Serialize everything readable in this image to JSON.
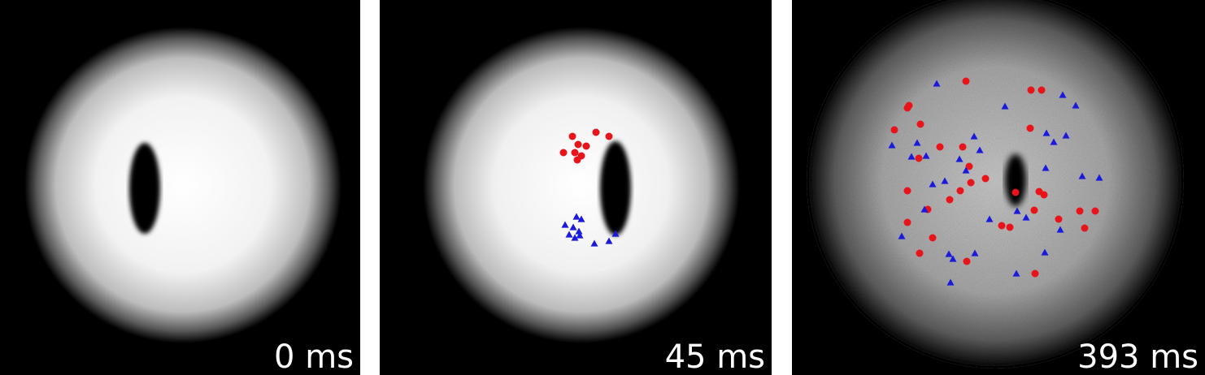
{
  "panels": [
    {
      "time_label": "0 ms"
    },
    {
      "time_label": "45 ms"
    },
    {
      "time_label": "393 ms"
    }
  ],
  "legend_markers": {
    "red": "#e8141a",
    "blue": "#1a1adc",
    "red_shape": "circle",
    "blue_shape": "triangle"
  }
}
